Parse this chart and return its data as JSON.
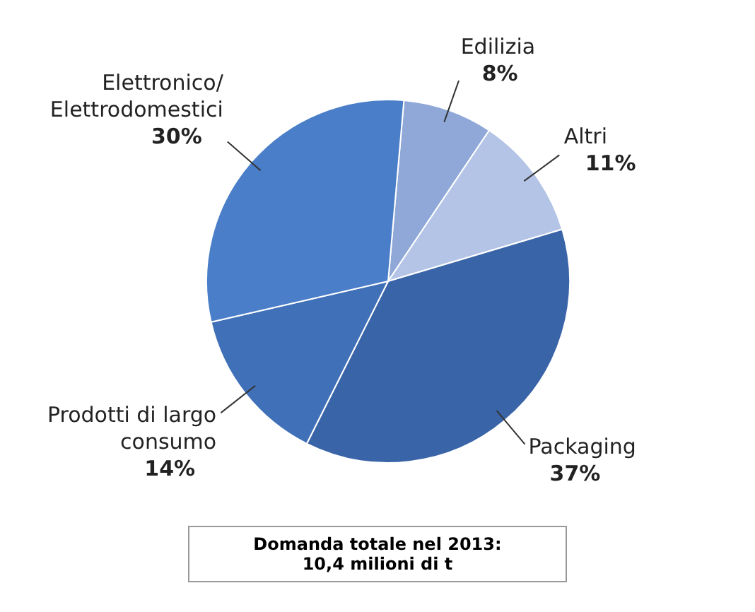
{
  "chart_data": {
    "type": "pie",
    "categories": [
      "Edilizia",
      "Altri",
      "Packaging",
      "Prodotti di largo consumo",
      "Elettronico/Elettrodomestici"
    ],
    "values": [
      8,
      11,
      37,
      14,
      30
    ],
    "colors": [
      "#8fa8d8",
      "#b4c4e6",
      "#3a64a8",
      "#4070b8",
      "#4a7ec8"
    ],
    "value_labels": [
      "8%",
      "11%",
      "37%",
      "14%",
      "30%"
    ],
    "legend": false,
    "annotations": [
      "Domanda totale nel 2013:\n10,4 milioni di t"
    ]
  }
}
